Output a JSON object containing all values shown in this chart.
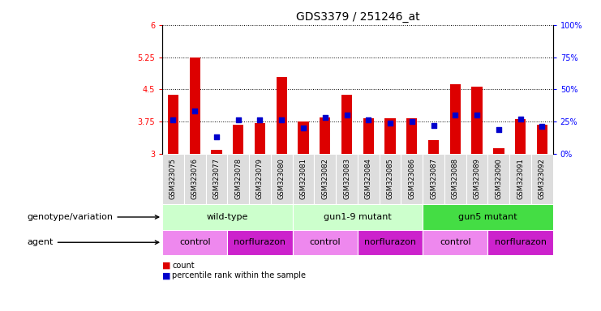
{
  "title": "GDS3379 / 251246_at",
  "samples": [
    "GSM323075",
    "GSM323076",
    "GSM323077",
    "GSM323078",
    "GSM323079",
    "GSM323080",
    "GSM323081",
    "GSM323082",
    "GSM323083",
    "GSM323084",
    "GSM323085",
    "GSM323086",
    "GSM323087",
    "GSM323088",
    "GSM323089",
    "GSM323090",
    "GSM323091",
    "GSM323092"
  ],
  "counts": [
    4.38,
    5.25,
    3.1,
    3.68,
    3.72,
    4.78,
    3.75,
    3.85,
    4.37,
    3.83,
    3.83,
    3.82,
    3.32,
    4.62,
    4.57,
    3.12,
    3.8,
    3.68
  ],
  "percentile_ranks": [
    26,
    33,
    13,
    26,
    26,
    26,
    20,
    28,
    30,
    26,
    24,
    25,
    22,
    30,
    30,
    19,
    27,
    21
  ],
  "ymin": 3.0,
  "ymax": 6.0,
  "yticks": [
    3.0,
    3.75,
    4.5,
    5.25,
    6.0
  ],
  "right_yticks": [
    0,
    25,
    50,
    75,
    100
  ],
  "bar_color": "#dd0000",
  "dot_color": "#0000cc",
  "bar_width": 0.5,
  "genotype_groups": [
    {
      "label": "wild-type",
      "start": 0,
      "end": 5,
      "color": "#ccffcc"
    },
    {
      "label": "gun1-9 mutant",
      "start": 6,
      "end": 11,
      "color": "#ccffcc"
    },
    {
      "label": "gun5 mutant",
      "start": 12,
      "end": 17,
      "color": "#44dd44"
    }
  ],
  "agent_groups": [
    {
      "label": "control",
      "start": 0,
      "end": 2,
      "color": "#ee88ee"
    },
    {
      "label": "norflurazon",
      "start": 3,
      "end": 5,
      "color": "#cc22cc"
    },
    {
      "label": "control",
      "start": 6,
      "end": 8,
      "color": "#ee88ee"
    },
    {
      "label": "norflurazon",
      "start": 9,
      "end": 11,
      "color": "#cc22cc"
    },
    {
      "label": "control",
      "start": 12,
      "end": 14,
      "color": "#ee88ee"
    },
    {
      "label": "norflurazon",
      "start": 15,
      "end": 17,
      "color": "#cc22cc"
    }
  ],
  "xlim_min": -0.5,
  "xlim_max": 17.5,
  "legend_count_color": "#dd0000",
  "legend_dot_color": "#0000cc",
  "genotype_label": "genotype/variation",
  "agent_label": "agent",
  "legend_count_label": "count",
  "legend_percentile_label": "percentile rank within the sample",
  "xlabel_bg_color": "#dddddd",
  "label_fontsize": 8,
  "tick_fontsize": 7,
  "sample_fontsize": 6
}
